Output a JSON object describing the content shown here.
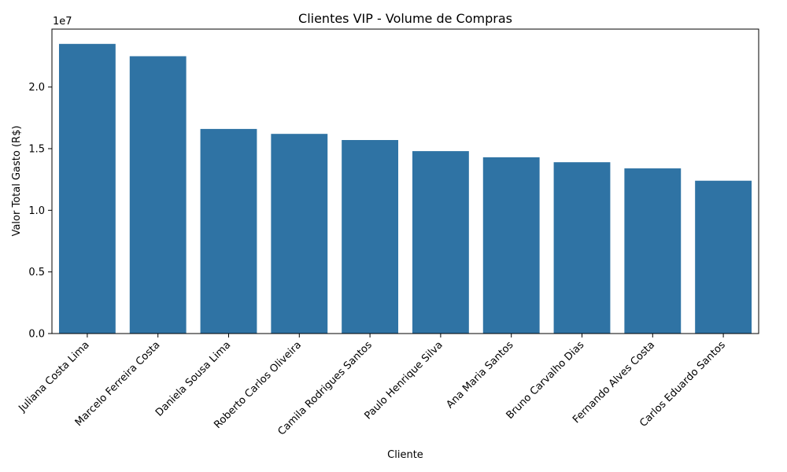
{
  "chart_data": {
    "type": "bar",
    "title": "Clientes VIP - Volume de Compras",
    "xlabel": "Cliente",
    "ylabel": "Valor Total Gasto (R$)",
    "y_offset_label": "1e7",
    "ylim": [
      0,
      24700000
    ],
    "y_ticks": [
      0,
      5000000,
      10000000,
      15000000,
      20000000
    ],
    "y_tick_labels": [
      "0.0",
      "0.5",
      "1.0",
      "1.5",
      "2.0"
    ],
    "bar_color": "#2f73a4",
    "grid": false,
    "categories": [
      "Juliana Costa Lima",
      "Marcelo Ferreira Costa",
      "Daniela Sousa Lima",
      "Roberto Carlos Oliveira",
      "Camila Rodrigues Santos",
      "Paulo Henrique Silva",
      "Ana Maria Santos",
      "Bruno Carvalho Dias",
      "Fernando Alves Costa",
      "Carlos Eduardo Santos"
    ],
    "values": [
      23500000,
      22500000,
      16600000,
      16200000,
      15700000,
      14800000,
      14300000,
      13900000,
      13400000,
      12400000
    ]
  }
}
